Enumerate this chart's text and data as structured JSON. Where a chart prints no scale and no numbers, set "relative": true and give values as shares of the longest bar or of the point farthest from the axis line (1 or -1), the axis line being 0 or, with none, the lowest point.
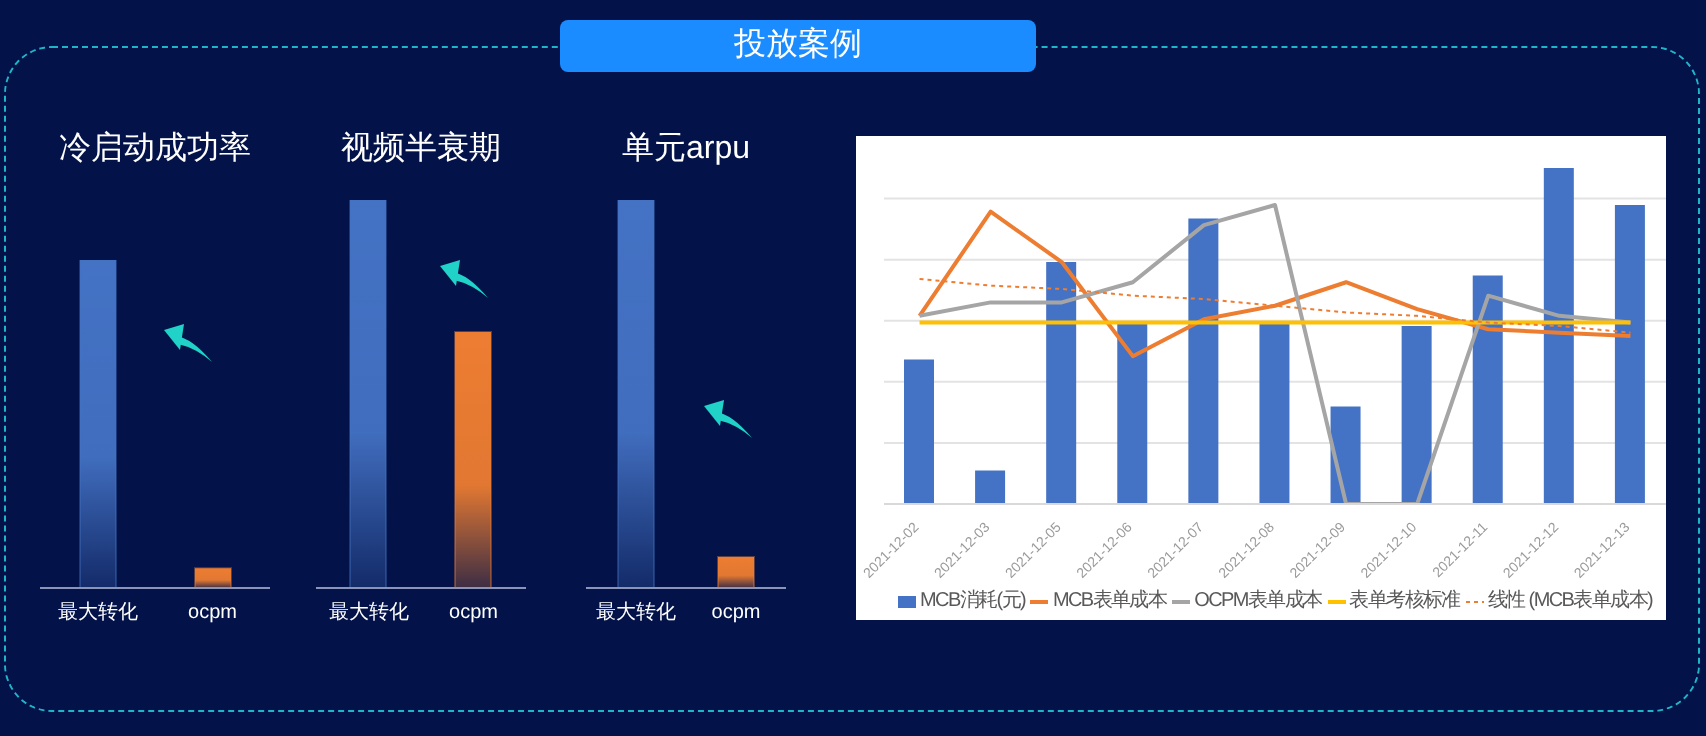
{
  "chart_data": [
    {
      "type": "bar",
      "title": "冷启动成功率",
      "annotations": [
        "投放案例"
      ],
      "relative": true,
      "categories": [
        "最大转化",
        "ocpm"
      ],
      "values": [
        1,
        0.06
      ],
      "colors": [
        "#4472c4",
        "#ed7d31"
      ]
    },
    {
      "type": "bar",
      "title": "视频半衰期",
      "relative": true,
      "categories": [
        "最大转化",
        "ocpm"
      ],
      "values": [
        1,
        0.66
      ],
      "colors": [
        "#4472c4",
        "#ed7d31"
      ]
    },
    {
      "type": "bar",
      "title": "单元arpu",
      "relative": true,
      "categories": [
        "最大转化",
        "ocpm"
      ],
      "values": [
        1,
        0.08
      ],
      "colors": [
        "#4472c4",
        "#ed7d31"
      ]
    },
    {
      "type": "bar",
      "relative": true,
      "grid": "y",
      "legend": "bottom",
      "marker": "none",
      "categories": [
        "2021-12-02",
        "2021-12-03",
        "2021-12-05",
        "2021-12-06",
        "2021-12-07",
        "2021-12-08",
        "2021-12-09",
        "2021-12-10",
        "2021-12-11",
        "2021-12-12",
        "2021-12-13"
      ],
      "series": [
        {
          "name": "MCB消耗(元)",
          "color": "#4472c4",
          "values": [
            0.43,
            0.1,
            0.72,
            0.54,
            0.85,
            0.54,
            0.29,
            0.53,
            0.68,
            1,
            0.89
          ]
        },
        {
          "name": "MCB表单成本",
          "type": "line",
          "color": "#ed7d31",
          "values": [
            0.56,
            0.87,
            0.72,
            0.44,
            0.55,
            0.59,
            0.66,
            0.58,
            0.52,
            0.51,
            0.5
          ]
        },
        {
          "name": "OCPM表单成本",
          "type": "line",
          "color": "#a5a5a5",
          "values": [
            0.56,
            0.6,
            0.6,
            0.66,
            0.83,
            0.89,
            0,
            0,
            0.62,
            0.56,
            0.54
          ]
        },
        {
          "name": "表单考核标准",
          "type": "line",
          "color": "#ffc000",
          "values": [
            0.54,
            0.54,
            0.54,
            0.54,
            0.54,
            0.54,
            0.54,
            0.54,
            0.54,
            0.54,
            0.54
          ]
        },
        {
          "name": "线性 (MCB表单成本)",
          "type": "line",
          "color": "#ed7d31",
          "line_style": "dotted",
          "values": [
            0.67,
            0.65,
            0.64,
            0.62,
            0.61,
            0.59,
            0.57,
            0.56,
            0.54,
            0.53,
            0.51
          ]
        }
      ]
    }
  ]
}
